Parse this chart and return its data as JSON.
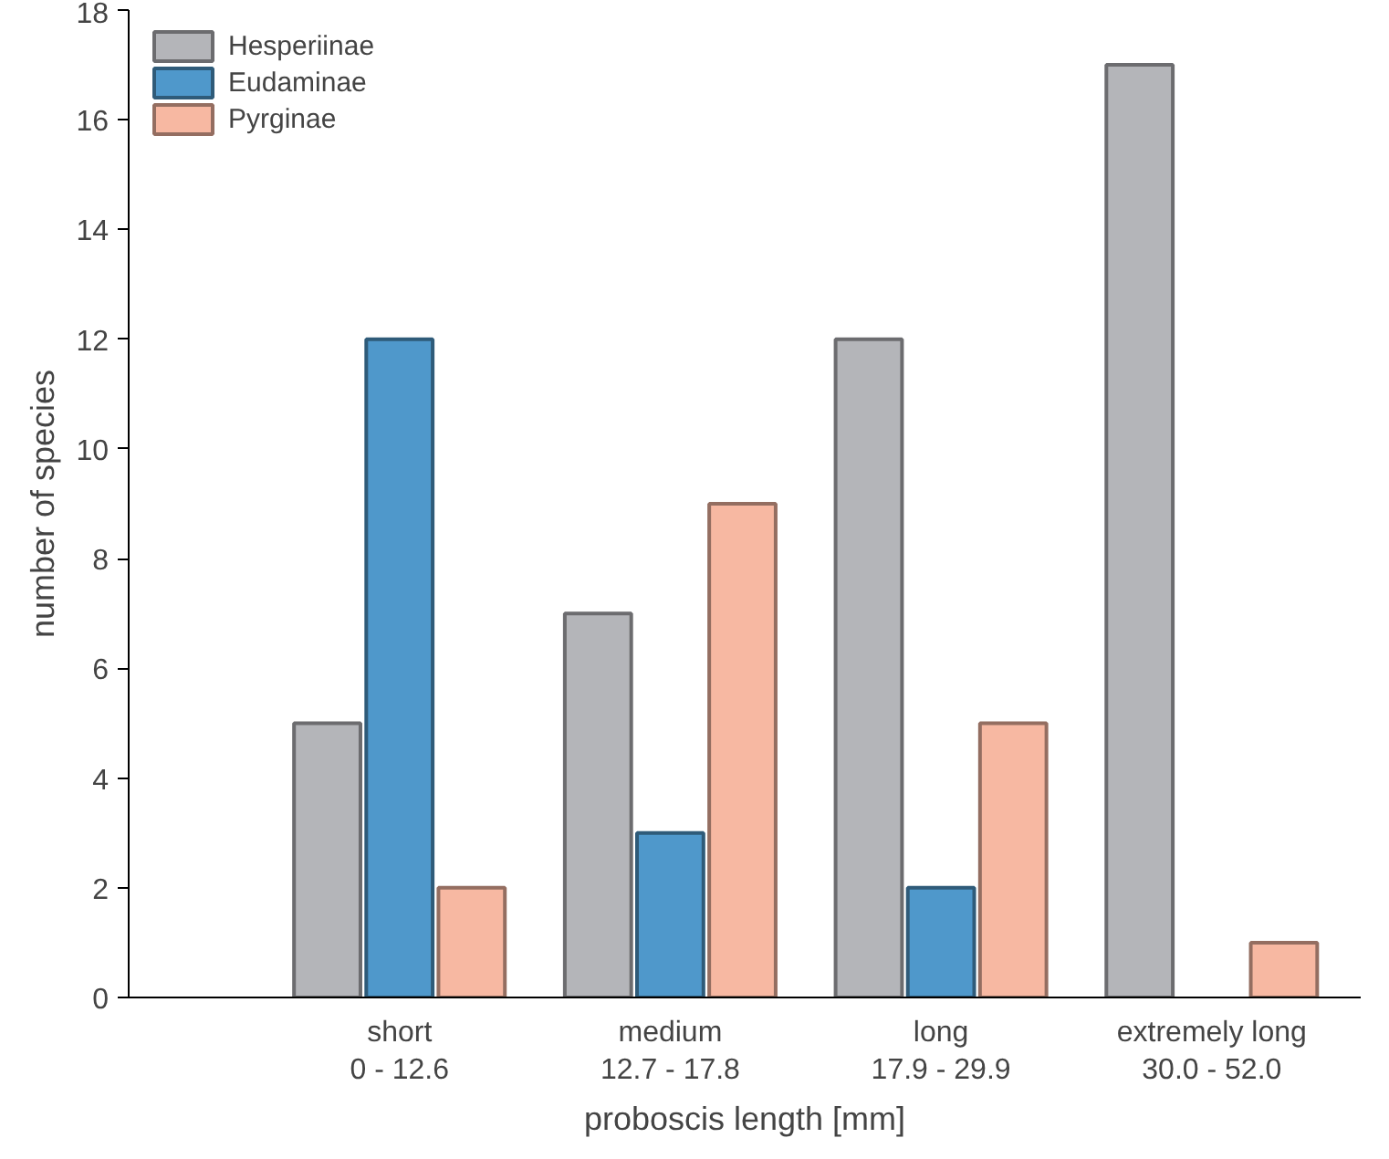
{
  "chart_data": {
    "type": "bar",
    "xlabel": "proboscis length [mm]",
    "ylabel": "number of species",
    "categories": [
      "short\n0 - 12.6",
      "medium\n12.7 - 17.8",
      "long\n17.9 - 29.9",
      "extremely long\n30.0 - 52.0"
    ],
    "series": [
      {
        "name": "Hesperiinae",
        "color": "#b4b5b9",
        "values": [
          5,
          7,
          12,
          17
        ]
      },
      {
        "name": "Eudaminae",
        "color": "#4f98cb",
        "values": [
          12,
          3,
          2,
          null
        ]
      },
      {
        "name": "Pyrginae",
        "color": "#f7b8a2",
        "values": [
          2,
          9,
          5,
          1
        ]
      }
    ],
    "ylim": [
      0,
      18
    ],
    "yticks": [
      0,
      2,
      4,
      6,
      8,
      10,
      12,
      14,
      16,
      18
    ],
    "grid": false,
    "legend": "top left"
  }
}
